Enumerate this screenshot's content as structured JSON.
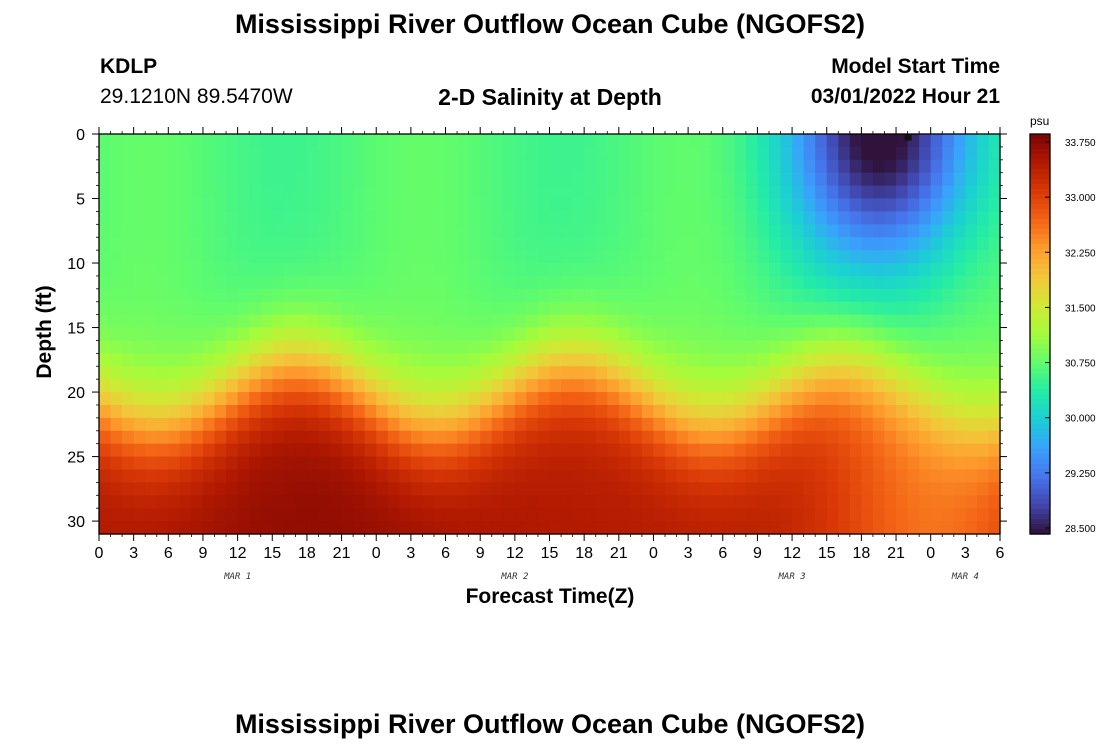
{
  "page": {
    "title": "Mississippi River Outflow Ocean Cube (NGOFS2)",
    "title_repeat": "Mississippi River Outflow Ocean Cube (NGOFS2)",
    "station_id": "KDLP",
    "station_coords": "29.1210N  89.5470W",
    "subtitle": "2-D Salinity at Depth",
    "model_start_label": "Model Start Time",
    "model_start_value": "03/01/2022 Hour 21"
  },
  "chart_data": {
    "type": "heatmap",
    "title": "2-D Salinity at Depth",
    "xlabel": "Forecast Time(Z)",
    "ylabel": "Depth (ft)",
    "x_unit": "forecast hour from 03/01 00Z",
    "xlim": [
      0,
      78
    ],
    "ylim": [
      0,
      31
    ],
    "y_inverted": true,
    "x_tick_labels": [
      "0",
      "3",
      "6",
      "9",
      "12",
      "15",
      "18",
      "21",
      "0",
      "3",
      "6",
      "9",
      "12",
      "15",
      "18",
      "21",
      "0",
      "3",
      "6",
      "9",
      "12",
      "15",
      "18",
      "21",
      "0",
      "3",
      "6"
    ],
    "y_tick_labels": [
      "0",
      "5",
      "10",
      "15",
      "20",
      "25",
      "30"
    ],
    "y_ticks": [
      0,
      5,
      10,
      15,
      20,
      25,
      30
    ],
    "date_labels": [
      {
        "text": "MAR 1",
        "hour": 12
      },
      {
        "text": "MAR 2",
        "hour": 36
      },
      {
        "text": "MAR 3",
        "hour": 60
      },
      {
        "text": "MAR 4",
        "hour": 75
      }
    ],
    "colorbar": {
      "unit": "psu",
      "min": 28.5,
      "max": 33.75,
      "tick_labels": [
        "33.750",
        "33.000",
        "32.250",
        "31.500",
        "30.750",
        "30.000",
        "29.250",
        "28.500"
      ],
      "tick_values": [
        33.75,
        33.0,
        32.25,
        31.5,
        30.75,
        30.0,
        29.25,
        28.5
      ],
      "colors": [
        "#30123b",
        "#4145ab",
        "#4675ed",
        "#39a2fc",
        "#1bcfd4",
        "#24eca6",
        "#61fc6c",
        "#a4fc3b",
        "#d1e834",
        "#f3c63a",
        "#fe9b2d",
        "#f36315",
        "#d93806",
        "#b11901",
        "#7a0403"
      ]
    },
    "marker": {
      "hour": 70,
      "depth": 0.2
    }
  }
}
